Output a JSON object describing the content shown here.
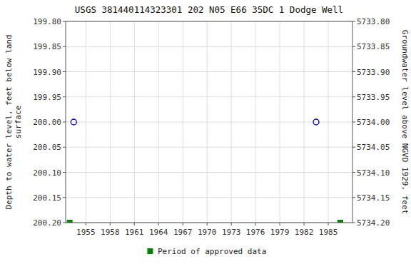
{
  "chart_data": {
    "type": "scatter",
    "title": "USGS 381440114323301 202  N05 E66 35DC  1    Dodge Well",
    "ylabel": "Depth to water level, feet below land\nsurface",
    "y2label": "Groundwater level above NGVD 1929, feet",
    "xlim": [
      1952.5,
      1988.0
    ],
    "xticks": [
      1955,
      1958,
      1961,
      1964,
      1967,
      1970,
      1973,
      1976,
      1979,
      1982,
      1985
    ],
    "ylim": [
      200.2,
      199.8
    ],
    "yticks": [
      {
        "value": 199.8,
        "label": "199.80"
      },
      199.85,
      {
        "value": 199.9,
        "label": "199.90"
      },
      199.95,
      {
        "value": 200.0,
        "label": "200.00"
      },
      200.05,
      {
        "value": 200.1,
        "label": "200.10"
      },
      200.15,
      {
        "value": 200.2,
        "label": "200.20"
      }
    ],
    "y2lim": [
      5734.2,
      5733.8
    ],
    "y2ticks": [
      {
        "value": 5734.2,
        "label": "5734.20"
      },
      5734.15,
      {
        "value": 5734.1,
        "label": "5734.10"
      },
      5734.05,
      {
        "value": 5734.0,
        "label": "5734.00"
      },
      5733.95,
      {
        "value": 5733.9,
        "label": "5733.90"
      },
      5733.85,
      {
        "value": 5733.8,
        "label": "5733.80"
      }
    ],
    "grid": true,
    "legend": "bottom",
    "series": [
      {
        "color": "#0000cc",
        "marker": "circle",
        "x": [
          1953.5,
          1983.5
        ],
        "values": [
          200.0,
          200.0
        ]
      },
      {
        "name": "Period of approved data",
        "color": "#008000",
        "marker": "square",
        "x": [
          1953.0,
          1986.5
        ],
        "values": [
          200.2,
          200.2
        ]
      }
    ]
  }
}
